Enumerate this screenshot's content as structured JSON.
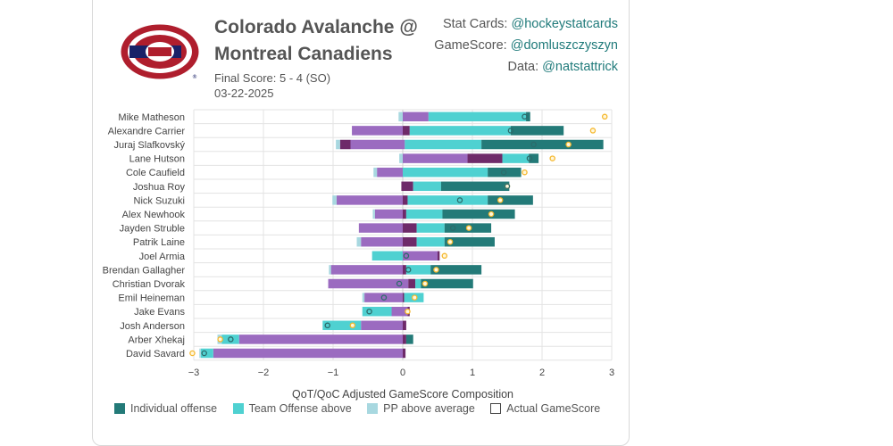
{
  "header": {
    "title_line1": "Colorado Avalanche @",
    "title_line2": "Montreal Canadiens",
    "final_score": "Final Score: 5 - 4 (SO)",
    "date": "03-22-2025"
  },
  "credits": [
    {
      "label": "Stat Cards: ",
      "handle": "@hockeystatcards"
    },
    {
      "label": "GameScore: ",
      "handle": "@domluszczyszyn"
    },
    {
      "label": "Data: ",
      "handle": "@natstattrick"
    }
  ],
  "colors": {
    "individual_offense": "#237a78",
    "team_offense": "#4fd1d1",
    "pp": "#a8d8e0",
    "purple_light": "#9b6bc0",
    "purple_dark": "#6e2a69",
    "marker_orange": "#f5b82e",
    "marker_teal": "#2c6b6b",
    "grid": "#e3e3e3"
  },
  "chart_data": {
    "type": "bar",
    "orientation": "horizontal-stacked",
    "xlabel": "QoT/QoC Adjusted GameScore Composition",
    "xlim": [
      -3,
      3
    ],
    "xticks": [
      -3,
      -2,
      -1,
      0,
      1,
      2,
      3
    ],
    "grid": true,
    "legend_position": "bottom",
    "legend": [
      "Individual offense",
      "Team Offense above",
      "PP above average",
      "Actual GameScore"
    ],
    "players": [
      {
        "name": "Mike Matheson",
        "neg": [
          {
            "c": "pp",
            "v": 0.06
          }
        ],
        "pos": [
          {
            "c": "purple_light",
            "v": 0.37
          },
          {
            "c": "team_offense",
            "v": 1.4
          },
          {
            "c": "individual_offense",
            "v": 0.06
          }
        ],
        "markers": [
          {
            "x": 2.9,
            "t": "orange"
          },
          {
            "x": 1.75,
            "t": "teal"
          }
        ]
      },
      {
        "name": "Alexandre Carrier",
        "neg": [
          {
            "c": "purple_light",
            "v": 0.73
          }
        ],
        "pos": [
          {
            "c": "purple_dark",
            "v": 0.1
          },
          {
            "c": "team_offense",
            "v": 1.45
          },
          {
            "c": "individual_offense",
            "v": 0.76
          }
        ],
        "markers": [
          {
            "x": 2.73,
            "t": "orange"
          },
          {
            "x": 1.55,
            "t": "teal"
          }
        ]
      },
      {
        "name": "Juraj Slafkovský",
        "neg": [
          {
            "c": "purple_light",
            "v": 0.75
          },
          {
            "c": "purple_dark",
            "v": 0.15
          },
          {
            "c": "pp",
            "v": 0.06
          }
        ],
        "pos": [
          {
            "c": "purple_light",
            "v": 0.03
          },
          {
            "c": "team_offense",
            "v": 1.1
          },
          {
            "c": "individual_offense",
            "v": 1.75
          }
        ],
        "markers": [
          {
            "x": 2.38,
            "t": "orange"
          },
          {
            "x": 1.88,
            "t": "teal"
          }
        ]
      },
      {
        "name": "Lane Hutson",
        "neg": [
          {
            "c": "pp",
            "v": 0.05
          }
        ],
        "pos": [
          {
            "c": "purple_light",
            "v": 0.93
          },
          {
            "c": "purple_dark",
            "v": 0.5
          },
          {
            "c": "team_offense",
            "v": 0.38
          },
          {
            "c": "individual_offense",
            "v": 0.14
          }
        ],
        "markers": [
          {
            "x": 2.15,
            "t": "orange"
          },
          {
            "x": 1.82,
            "t": "teal"
          }
        ]
      },
      {
        "name": "Cole Caufield",
        "neg": [
          {
            "c": "purple_light",
            "v": 0.37
          },
          {
            "c": "pp",
            "v": 0.05
          }
        ],
        "pos": [
          {
            "c": "team_offense",
            "v": 1.22
          },
          {
            "c": "individual_offense",
            "v": 0.48
          }
        ],
        "markers": [
          {
            "x": 1.75,
            "t": "orange"
          },
          {
            "x": 1.45,
            "t": "teal"
          }
        ]
      },
      {
        "name": "Joshua Roy",
        "neg": [
          {
            "c": "purple_dark",
            "v": 0.02
          }
        ],
        "pos": [
          {
            "c": "purple_dark",
            "v": 0.15
          },
          {
            "c": "team_offense",
            "v": 0.4
          },
          {
            "c": "individual_offense",
            "v": 0.98
          }
        ],
        "markers": [
          {
            "x": 1.5,
            "t": "orange"
          },
          {
            "x": 1.5,
            "t": "teal"
          }
        ]
      },
      {
        "name": "Nick Suzuki",
        "neg": [
          {
            "c": "purple_light",
            "v": 0.95
          },
          {
            "c": "pp",
            "v": 0.06
          }
        ],
        "pos": [
          {
            "c": "purple_dark",
            "v": 0.07
          },
          {
            "c": "team_offense",
            "v": 1.15
          },
          {
            "c": "individual_offense",
            "v": 0.65
          }
        ],
        "markers": [
          {
            "x": 1.4,
            "t": "orange"
          },
          {
            "x": 0.82,
            "t": "teal"
          }
        ]
      },
      {
        "name": "Alex Newhook",
        "neg": [
          {
            "c": "purple_light",
            "v": 0.4
          },
          {
            "c": "pp",
            "v": 0.03
          }
        ],
        "pos": [
          {
            "c": "purple_dark",
            "v": 0.05
          },
          {
            "c": "team_offense",
            "v": 0.52
          },
          {
            "c": "individual_offense",
            "v": 1.04
          }
        ],
        "markers": [
          {
            "x": 1.27,
            "t": "orange"
          }
        ]
      },
      {
        "name": "Jayden Struble",
        "neg": [
          {
            "c": "purple_light",
            "v": 0.63
          }
        ],
        "pos": [
          {
            "c": "purple_dark",
            "v": 0.2
          },
          {
            "c": "team_offense",
            "v": 0.4
          },
          {
            "c": "individual_offense",
            "v": 0.67
          }
        ],
        "markers": [
          {
            "x": 0.95,
            "t": "orange"
          },
          {
            "x": 0.72,
            "t": "teal"
          }
        ]
      },
      {
        "name": "Patrik Laine",
        "neg": [
          {
            "c": "purple_light",
            "v": 0.6
          },
          {
            "c": "pp",
            "v": 0.06
          }
        ],
        "pos": [
          {
            "c": "purple_dark",
            "v": 0.2
          },
          {
            "c": "team_offense",
            "v": 0.4
          },
          {
            "c": "individual_offense",
            "v": 0.72
          }
        ],
        "markers": [
          {
            "x": 0.68,
            "t": "orange"
          }
        ]
      },
      {
        "name": "Joel Armia",
        "neg": [
          {
            "c": "team_offense",
            "v": 0.44
          }
        ],
        "pos": [
          {
            "c": "purple_light",
            "v": 0.5
          },
          {
            "c": "purple_dark",
            "v": 0.03
          }
        ],
        "markers": [
          {
            "x": 0.6,
            "t": "orange"
          },
          {
            "x": 0.05,
            "t": "teal"
          }
        ]
      },
      {
        "name": "Brendan Gallagher",
        "neg": [
          {
            "c": "purple_light",
            "v": 1.03
          },
          {
            "c": "pp",
            "v": 0.03
          }
        ],
        "pos": [
          {
            "c": "purple_dark",
            "v": 0.05
          },
          {
            "c": "team_offense",
            "v": 0.35
          },
          {
            "c": "individual_offense",
            "v": 0.73
          }
        ],
        "markers": [
          {
            "x": 0.48,
            "t": "orange"
          },
          {
            "x": 0.08,
            "t": "teal"
          }
        ]
      },
      {
        "name": "Christian Dvorak",
        "neg": [
          {
            "c": "purple_light",
            "v": 1.07
          }
        ],
        "pos": [
          {
            "c": "purple_light",
            "v": 0.08
          },
          {
            "c": "purple_dark",
            "v": 0.1
          },
          {
            "c": "team_offense",
            "v": 0.08
          },
          {
            "c": "individual_offense",
            "v": 0.75
          }
        ],
        "markers": [
          {
            "x": 0.32,
            "t": "orange"
          },
          {
            "x": -0.05,
            "t": "teal"
          }
        ]
      },
      {
        "name": "Emil Heineman",
        "neg": [
          {
            "c": "purple_light",
            "v": 0.55
          },
          {
            "c": "pp",
            "v": 0.03
          }
        ],
        "pos": [
          {
            "c": "purple_dark",
            "v": 0.02
          },
          {
            "c": "team_offense",
            "v": 0.28
          }
        ],
        "markers": [
          {
            "x": 0.17,
            "t": "orange"
          },
          {
            "x": -0.27,
            "t": "teal"
          }
        ]
      },
      {
        "name": "Jake Evans",
        "neg": [
          {
            "c": "purple_light",
            "v": 0.16
          },
          {
            "c": "team_offense",
            "v": 0.42
          }
        ],
        "pos": [
          {
            "c": "purple_light",
            "v": 0.07
          },
          {
            "c": "purple_dark",
            "v": 0.03
          }
        ],
        "markers": [
          {
            "x": 0.07,
            "t": "orange"
          },
          {
            "x": -0.48,
            "t": "teal"
          }
        ]
      },
      {
        "name": "Josh Anderson",
        "neg": [
          {
            "c": "purple_light",
            "v": 0.6
          },
          {
            "c": "team_offense",
            "v": 0.55
          }
        ],
        "pos": [
          {
            "c": "purple_dark",
            "v": 0.05
          }
        ],
        "markers": [
          {
            "x": -0.72,
            "t": "orange"
          },
          {
            "x": -1.08,
            "t": "teal"
          }
        ]
      },
      {
        "name": "Arber Xhekaj",
        "neg": [
          {
            "c": "purple_light",
            "v": 2.35
          },
          {
            "c": "team_offense",
            "v": 0.25
          },
          {
            "c": "pp",
            "v": 0.06
          }
        ],
        "pos": [
          {
            "c": "purple_dark",
            "v": 0.05
          },
          {
            "c": "individual_offense",
            "v": 0.1
          }
        ],
        "markers": [
          {
            "x": -2.62,
            "t": "orange"
          },
          {
            "x": -2.47,
            "t": "teal"
          }
        ]
      },
      {
        "name": "David Savard",
        "neg": [
          {
            "c": "purple_light",
            "v": 2.72
          },
          {
            "c": "team_offense",
            "v": 0.18
          },
          {
            "c": "pp",
            "v": 0.02
          }
        ],
        "pos": [
          {
            "c": "purple_dark",
            "v": 0.04
          }
        ],
        "markers": [
          {
            "x": -3.02,
            "t": "orange"
          },
          {
            "x": -2.85,
            "t": "teal"
          }
        ]
      }
    ]
  }
}
